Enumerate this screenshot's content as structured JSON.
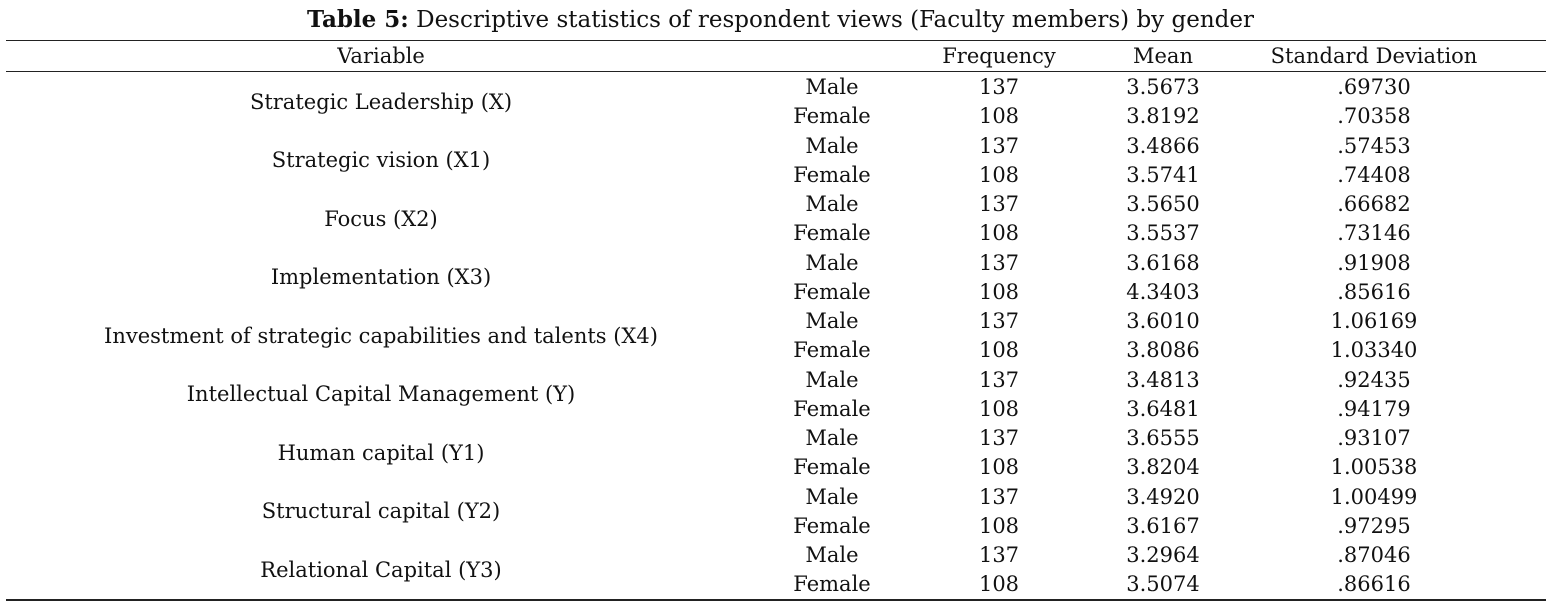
{
  "caption": {
    "label": "Table 5:",
    "text": " Descriptive statistics of respondent views (Faculty members) by gender"
  },
  "headers": {
    "variable": "Variable",
    "frequency": "Frequency",
    "mean": "Mean",
    "sd": "Standard Deviation"
  },
  "groups": [
    {
      "variable": "Strategic Leadership (X)",
      "rows": [
        {
          "gender": "Male",
          "frequency": "137",
          "mean": "3.5673",
          "sd": ".69730"
        },
        {
          "gender": "Female",
          "frequency": "108",
          "mean": "3.8192",
          "sd": ".70358"
        }
      ]
    },
    {
      "variable": "Strategic vision (X1)",
      "rows": [
        {
          "gender": "Male",
          "frequency": "137",
          "mean": "3.4866",
          "sd": ".57453"
        },
        {
          "gender": "Female",
          "frequency": "108",
          "mean": "3.5741",
          "sd": ".74408"
        }
      ]
    },
    {
      "variable": "Focus (X2)",
      "rows": [
        {
          "gender": "Male",
          "frequency": "137",
          "mean": "3.5650",
          "sd": ".66682"
        },
        {
          "gender": "Female",
          "frequency": "108",
          "mean": "3.5537",
          "sd": ".73146"
        }
      ]
    },
    {
      "variable": "Implementation (X3)",
      "rows": [
        {
          "gender": "Male",
          "frequency": "137",
          "mean": "3.6168",
          "sd": ".91908"
        },
        {
          "gender": "Female",
          "frequency": "108",
          "mean": "4.3403",
          "sd": ".85616"
        }
      ]
    },
    {
      "variable": "Investment of strategic capabilities and talents (X4)",
      "rows": [
        {
          "gender": "Male",
          "frequency": "137",
          "mean": "3.6010",
          "sd": "1.06169"
        },
        {
          "gender": "Female",
          "frequency": "108",
          "mean": "3.8086",
          "sd": "1.03340"
        }
      ]
    },
    {
      "variable": "Intellectual Capital Management (Y)",
      "rows": [
        {
          "gender": "Male",
          "frequency": "137",
          "mean": "3.4813",
          "sd": ".92435"
        },
        {
          "gender": "Female",
          "frequency": "108",
          "mean": "3.6481",
          "sd": ".94179"
        }
      ]
    },
    {
      "variable": "Human capital (Y1)",
      "rows": [
        {
          "gender": "Male",
          "frequency": "137",
          "mean": "3.6555",
          "sd": ".93107"
        },
        {
          "gender": "Female",
          "frequency": "108",
          "mean": "3.8204",
          "sd": "1.00538"
        }
      ]
    },
    {
      "variable": "Structural capital (Y2)",
      "rows": [
        {
          "gender": "Male",
          "frequency": "137",
          "mean": "3.4920",
          "sd": "1.00499"
        },
        {
          "gender": "Female",
          "frequency": "108",
          "mean": "3.6167",
          "sd": ".97295"
        }
      ]
    },
    {
      "variable": "Relational Capital (Y3)",
      "rows": [
        {
          "gender": "Male",
          "frequency": "137",
          "mean": "3.2964",
          "sd": ".87046"
        },
        {
          "gender": "Female",
          "frequency": "108",
          "mean": "3.5074",
          "sd": ".86616"
        }
      ]
    }
  ]
}
